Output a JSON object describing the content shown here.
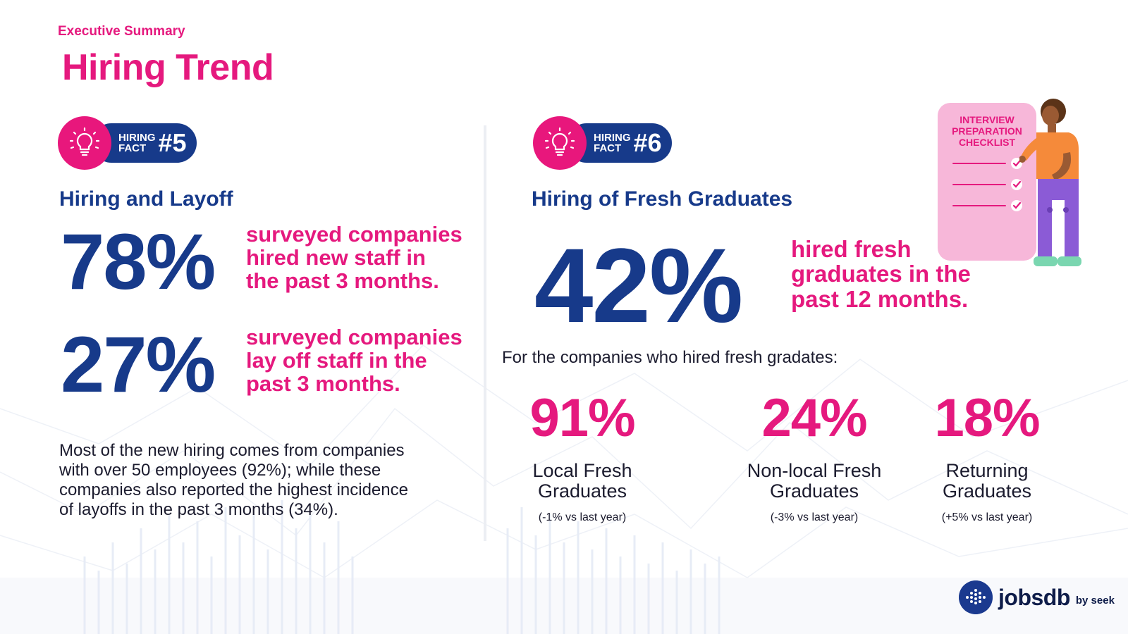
{
  "header": {
    "eyebrow": "Executive Summary",
    "title": "Hiring Trend"
  },
  "fact5": {
    "badge_small_1": "HIRING",
    "badge_small_2": "FACT",
    "badge_number": "#5",
    "section_title": "Hiring and Layoff",
    "stat1_pct": "78%",
    "stat1_text": [
      "surveyed companies",
      "hired new staff in",
      "the past 3 months."
    ],
    "stat2_pct": "27%",
    "stat2_text": [
      "surveyed companies",
      "lay off staff in the",
      "past 3 months."
    ],
    "note_lines": [
      "Most of the new hiring comes from companies",
      "with over 50 employees (92%); while these",
      "companies also reported the highest incidence",
      "of layoffs in the past 3 months (34%)."
    ]
  },
  "fact6": {
    "badge_small_1": "HIRING",
    "badge_small_2": "FACT",
    "badge_number": "#6",
    "section_title": "Hiring of Fresh Graduates",
    "main_pct": "42%",
    "main_text": [
      "hired fresh",
      "graduates in the",
      "past 12 months."
    ],
    "lead": "For the companies who hired fresh gradates:",
    "stats": [
      {
        "pct": "91%",
        "label_1": "Local Fresh",
        "label_2": "Graduates",
        "change": "(-1% vs last year)"
      },
      {
        "pct": "24%",
        "label_1": "Non-local Fresh",
        "label_2": "Graduates",
        "change": "(-3% vs last year)"
      },
      {
        "pct": "18%",
        "label_1": "Returning",
        "label_2": "Graduates",
        "change": "(+5% vs last year)"
      }
    ]
  },
  "illustration": {
    "checklist_lines": [
      "INTERVIEW",
      "PREPARATION",
      "CHECKLIST"
    ]
  },
  "brand": {
    "name": "jobsdb",
    "by": "by seek"
  },
  "colors": {
    "pink": "#e5197e",
    "navy": "#173a8a"
  },
  "icons": [
    "lightbulb-icon",
    "check-icon",
    "jobsdb-logo-icon"
  ]
}
